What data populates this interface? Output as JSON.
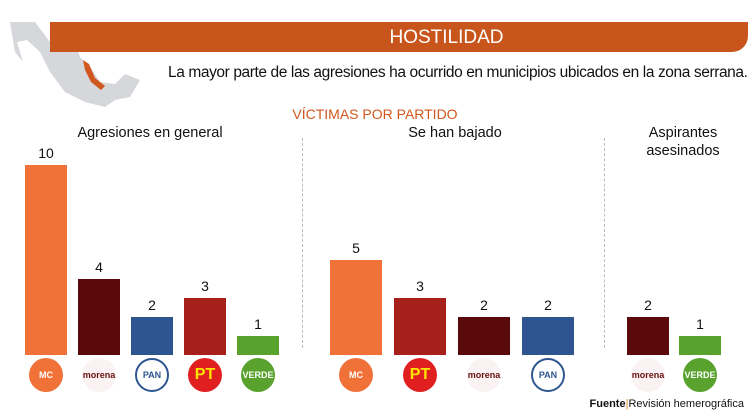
{
  "header": {
    "title": "HOSTILIDAD",
    "subtitle": "La mayor parte de las agresiones ha ocurrido en municipios ubicados en la zona serrana.",
    "section": "VÍCTIMAS POR PARTIDO"
  },
  "colors": {
    "banner": "#c8561c",
    "mc": "#f07238",
    "morena": "#5a0a0a",
    "pan": "#2e5590",
    "pt": "#a61f1a",
    "pvem": "#5aa22e"
  },
  "logos": {
    "mc": "MC",
    "morena": "morena",
    "pan": "PAN",
    "pt": "PT",
    "pvem": "VERDE"
  },
  "chart_data": [
    {
      "type": "bar",
      "title": "Agresiones en general",
      "categories": [
        "mc",
        "morena",
        "pan",
        "pt",
        "pvem"
      ],
      "values": [
        10,
        4,
        2,
        3,
        1
      ]
    },
    {
      "type": "bar",
      "title": "Se han bajado",
      "categories": [
        "mc",
        "pt",
        "morena",
        "pan"
      ],
      "values": [
        5,
        3,
        2,
        2
      ]
    },
    {
      "type": "bar",
      "title": "Aspirantes asesinados",
      "categories": [
        "morena",
        "pvem"
      ],
      "values": [
        2,
        1
      ]
    }
  ],
  "source": {
    "label": "Fuente",
    "text": "Revisión hemerográfica"
  }
}
